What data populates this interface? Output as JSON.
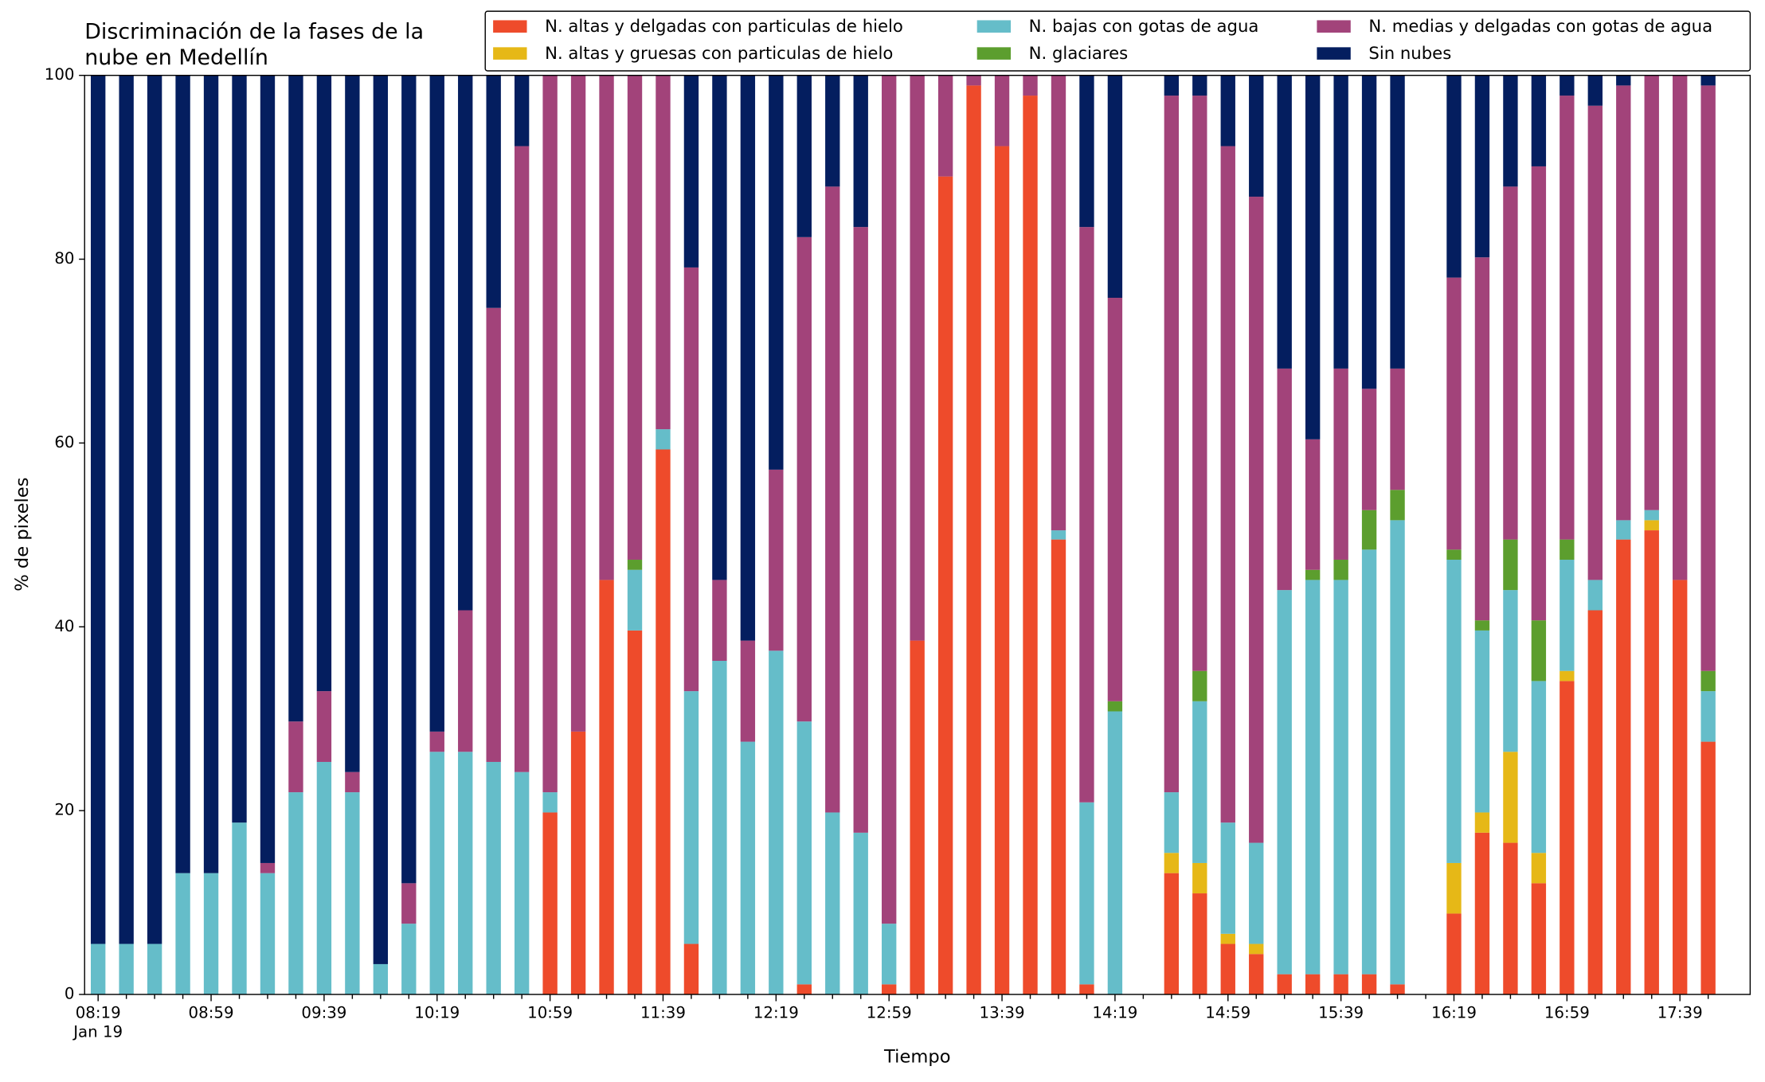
{
  "chart_data": {
    "type": "stacked_bar",
    "title": [
      "Discriminación de la fases de la",
      "nube en Medellín"
    ],
    "xlabel": "Tiempo",
    "ylabel": "% de pixeles",
    "x_date_label": "Jan 19",
    "categories": [
      "08:19",
      null,
      null,
      null,
      "08:59",
      null,
      null,
      null,
      "09:39",
      null,
      null,
      null,
      "10:19",
      null,
      null,
      null,
      "10:59",
      null,
      null,
      null,
      "11:39",
      null,
      null,
      null,
      "12:19",
      null,
      null,
      null,
      "12:59",
      null,
      null,
      null,
      "13:39",
      null,
      null,
      null,
      "14:19",
      null,
      null,
      null,
      "14:59",
      null,
      null,
      null,
      "15:39",
      null,
      null,
      null,
      "16:19",
      null,
      null,
      null,
      "16:59",
      null,
      null,
      null,
      "17:39",
      null
    ],
    "series": [
      {
        "name": "N. altas y delgadas con particulas de hielo",
        "color": "#ee4b2b",
        "values": [
          0,
          0,
          0,
          0,
          0,
          0,
          0,
          0,
          0,
          0,
          0,
          0,
          0,
          0,
          0,
          0,
          19.8,
          28.6,
          45.1,
          39.6,
          59.3,
          5.5,
          0,
          0,
          0,
          1.1,
          0,
          0,
          1.1,
          38.5,
          89,
          98.9,
          92.3,
          97.8,
          49.5,
          1.1,
          0,
          null,
          13.2,
          11,
          5.5,
          4.4,
          2.2,
          2.2,
          2.2,
          2.2,
          1.1,
          null,
          8.8,
          17.6,
          16.5,
          12.1,
          34.1,
          41.8,
          49.5,
          50.5,
          45.1,
          27.5
        ]
      },
      {
        "name": "N. altas y gruesas con particulas de hielo",
        "color": "#e6b817",
        "values": [
          0,
          0,
          0,
          0,
          0,
          0,
          0,
          0,
          0,
          0,
          0,
          0,
          0,
          0,
          0,
          0,
          0,
          0,
          0,
          0,
          0,
          0,
          0,
          0,
          0,
          0,
          0,
          0,
          0,
          0,
          0,
          0,
          0,
          0,
          0,
          0,
          0,
          null,
          2.2,
          3.3,
          1.1,
          1.1,
          0,
          0,
          0,
          0,
          0,
          null,
          5.5,
          2.2,
          9.9,
          3.3,
          1.1,
          0,
          0,
          1.1,
          0,
          0
        ]
      },
      {
        "name": "N. bajas con gotas de agua",
        "color": "#65bdc9",
        "values": [
          5.5,
          5.5,
          5.5,
          13.2,
          13.2,
          18.7,
          13.2,
          22,
          25.3,
          22,
          3.3,
          7.7,
          26.4,
          26.4,
          25.3,
          24.2,
          2.2,
          0,
          0,
          6.6,
          2.2,
          27.5,
          36.3,
          27.5,
          37.4,
          28.6,
          19.8,
          17.6,
          6.6,
          0,
          0,
          0,
          0,
          0,
          1,
          19.8,
          30.8,
          null,
          6.6,
          17.6,
          12.1,
          11,
          41.8,
          42.9,
          42.9,
          46.2,
          50.5,
          null,
          33,
          19.8,
          17.6,
          18.7,
          12.1,
          3.3,
          2.1,
          1.1,
          0,
          5.5
        ]
      },
      {
        "name": "N. glaciares",
        "color": "#5c9e2e",
        "values": [
          0,
          0,
          0,
          0,
          0,
          0,
          0,
          0,
          0,
          0,
          0,
          0,
          0,
          0,
          0,
          0,
          0,
          0,
          0,
          1.1,
          0,
          0,
          0,
          0,
          0,
          0,
          0,
          0,
          0,
          0,
          0,
          0,
          0,
          0,
          0,
          0,
          1.1,
          null,
          0,
          3.3,
          0,
          0,
          0,
          1.1,
          2.2,
          4.3,
          3.3,
          null,
          1.1,
          1.1,
          5.5,
          6.6,
          2.2,
          0,
          0,
          0,
          0,
          2.2
        ]
      },
      {
        "name": "N. medias y delgadas con gotas de agua",
        "color": "#a2437a",
        "values": [
          0,
          0,
          0,
          0,
          0,
          0,
          1.1,
          7.7,
          7.7,
          2.2,
          0,
          4.4,
          2.2,
          15.4,
          49.4,
          68.1,
          78,
          71.4,
          54.9,
          52.7,
          38.5,
          46.1,
          8.8,
          11,
          19.7,
          52.7,
          68.1,
          65.9,
          92.3,
          61.5,
          11,
          1.1,
          7.7,
          2.2,
          49.5,
          62.6,
          43.9,
          null,
          75.8,
          62.6,
          73.6,
          70.3,
          24.1,
          14.2,
          20.8,
          13.2,
          13.2,
          null,
          29.6,
          39.5,
          38.4,
          49.4,
          48.3,
          51.6,
          47.3,
          47.3,
          54.9,
          63.7
        ]
      },
      {
        "name": "Sin nubes",
        "color": "#041e5f",
        "values": [
          94.5,
          94.5,
          94.5,
          86.8,
          86.8,
          81.3,
          85.7,
          70.3,
          67,
          75.8,
          96.7,
          87.9,
          71.4,
          58.2,
          25.3,
          7.7,
          0,
          0,
          0,
          0,
          0,
          20.9,
          54.9,
          61.5,
          42.9,
          17.6,
          12.1,
          16.5,
          0,
          0,
          0,
          0,
          0,
          0,
          0,
          16.5,
          24.2,
          null,
          2.2,
          2.2,
          7.7,
          13.2,
          31.9,
          39.6,
          31.9,
          34.1,
          31.9,
          null,
          22,
          19.8,
          12.1,
          9.9,
          2.2,
          3.3,
          1.1,
          0,
          0,
          1.1
        ]
      }
    ],
    "ylim": [
      0,
      100
    ],
    "yticks": [
      0,
      20,
      40,
      60,
      80,
      100
    ],
    "legend": "upper right",
    "grid": false
  }
}
